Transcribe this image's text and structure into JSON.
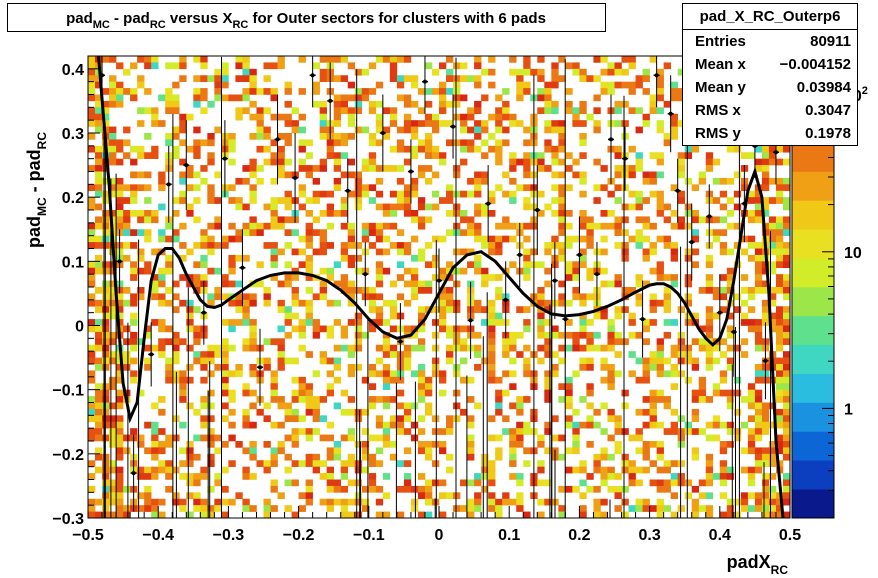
{
  "title": {
    "parts": [
      {
        "text": "pad",
        "sub": false
      },
      {
        "text": "MC",
        "sub": true
      },
      {
        "text": " - pad",
        "sub": false
      },
      {
        "text": "RC",
        "sub": true
      },
      {
        "text": " versus X",
        "sub": false
      },
      {
        "text": "RC",
        "sub": true
      },
      {
        "text": " for Outer sectors for clusters with 6 pads",
        "sub": false
      }
    ]
  },
  "stats": {
    "name": "pad_X_RC_Outerp6",
    "rows": [
      {
        "key": "Entries",
        "value": "80911"
      },
      {
        "key": "Mean x",
        "value": "−0.004152"
      },
      {
        "key": "Mean y",
        "value": "0.03984"
      },
      {
        "key": "RMS x",
        "value": "0.3047"
      },
      {
        "key": "RMS y",
        "value": "0.1978"
      }
    ]
  },
  "colors": {
    "fit_line": "#000000",
    "palette": [
      "#0a1a8c",
      "#0b3fbf",
      "#0d66d6",
      "#1a92e0",
      "#2bbde0",
      "#3fd6c2",
      "#5fe08c",
      "#9ce64a",
      "#d2ec2a",
      "#e8e020",
      "#f0c818",
      "#f0a014",
      "#ea7814",
      "#e65010",
      "#e03a10",
      "#d82812"
    ]
  },
  "chart_data": {
    "type": "heatmap",
    "title": "pad_MC - pad_RC versus X_RC for Outer sectors for clusters with 6 pads",
    "xlabel": "padX_RC",
    "ylabel": "pad_MC - pad_RC",
    "xlim": [
      -0.5,
      0.5
    ],
    "ylim": [
      -0.3,
      0.42
    ],
    "x_ticks": [
      -0.5,
      -0.4,
      -0.3,
      -0.2,
      -0.1,
      0,
      0.1,
      0.2,
      0.3,
      0.4,
      0.5
    ],
    "x_tick_labels": [
      "−0.5",
      "−0.4",
      "−0.3",
      "−0.2",
      "−0.1",
      "0",
      "0.1",
      "0.2",
      "0.3",
      "0.4",
      "0.5"
    ],
    "y_ticks": [
      -0.3,
      -0.2,
      -0.1,
      0,
      0.1,
      0.2,
      0.3,
      0.4
    ],
    "y_tick_labels": [
      "−0.3",
      "−0.2",
      "−0.1",
      "0",
      "0.1",
      "0.2",
      "0.3",
      "0.4"
    ],
    "z_scale": "log",
    "z_tick_labels": [
      {
        "label": "1",
        "z": 1
      },
      {
        "label": "10",
        "z": 10
      },
      {
        "label": "10",
        "z": 100,
        "exponent": "2"
      }
    ],
    "grid": false,
    "profile": {
      "x": [
        -0.48,
        -0.455,
        -0.435,
        -0.41,
        -0.385,
        -0.36,
        -0.335,
        -0.305,
        -0.28,
        -0.255,
        -0.23,
        -0.205,
        -0.18,
        -0.155,
        -0.13,
        -0.105,
        -0.08,
        -0.055,
        -0.04,
        -0.02,
        0.0,
        0.02,
        0.045,
        0.07,
        0.095,
        0.115,
        0.14,
        0.165,
        0.18,
        0.2,
        0.225,
        0.245,
        0.265,
        0.29,
        0.31,
        0.33,
        0.34,
        0.36,
        0.385,
        0.4,
        0.42,
        0.435,
        0.45,
        0.465,
        0.48
      ],
      "y": [
        0.39,
        0.1,
        -0.23,
        -0.045,
        0.22,
        0.25,
        0.02,
        0.26,
        0.09,
        -0.065,
        0.29,
        0.23,
        0.39,
        0.35,
        0.21,
        0.08,
        0.3,
        -0.025,
        0.24,
        0.38,
        0.07,
        0.31,
        0.008,
        0.19,
        0.04,
        0.11,
        0.18,
        0.07,
        0.01,
        0.11,
        0.08,
        0.29,
        0.26,
        0.01,
        0.39,
        0.33,
        0.21,
        0.13,
        0.17,
        0.02,
        -0.01,
        0.19,
        0.28,
        -0.055,
        0.27
      ],
      "err": [
        0.06,
        0.05,
        0.06,
        0.05,
        0.06,
        0.07,
        0.05,
        0.06,
        0.06,
        0.06,
        0.07,
        0.07,
        0.05,
        0.06,
        0.05,
        0.05,
        0.06,
        0.06,
        0.05,
        0.05,
        0.05,
        0.05,
        0.06,
        0.06,
        0.06,
        0.05,
        0.07,
        0.06,
        0.06,
        0.06,
        0.05,
        0.07,
        0.05,
        0.06,
        0.05,
        0.06,
        0.05,
        0.06,
        0.05,
        0.06,
        0.07,
        0.06,
        0.05,
        0.06,
        0.05
      ]
    },
    "fit_curve": {
      "x": [
        -0.485,
        -0.47,
        -0.46,
        -0.45,
        -0.44,
        -0.43,
        -0.42,
        -0.41,
        -0.4,
        -0.39,
        -0.38,
        -0.37,
        -0.36,
        -0.35,
        -0.34,
        -0.33,
        -0.32,
        -0.31,
        -0.3,
        -0.28,
        -0.26,
        -0.24,
        -0.22,
        -0.2,
        -0.18,
        -0.16,
        -0.14,
        -0.12,
        -0.1,
        -0.08,
        -0.06,
        -0.04,
        -0.02,
        0.0,
        0.02,
        0.04,
        0.06,
        0.08,
        0.1,
        0.12,
        0.14,
        0.16,
        0.18,
        0.2,
        0.22,
        0.24,
        0.26,
        0.28,
        0.3,
        0.31,
        0.32,
        0.33,
        0.34,
        0.35,
        0.36,
        0.37,
        0.38,
        0.39,
        0.4,
        0.41,
        0.42,
        0.43,
        0.44,
        0.45,
        0.46,
        0.47,
        0.48,
        0.49
      ],
      "y": [
        0.42,
        0.22,
        0.05,
        -0.09,
        -0.145,
        -0.12,
        -0.02,
        0.07,
        0.11,
        0.12,
        0.12,
        0.105,
        0.08,
        0.06,
        0.04,
        0.03,
        0.028,
        0.032,
        0.04,
        0.055,
        0.07,
        0.078,
        0.082,
        0.082,
        0.078,
        0.07,
        0.055,
        0.035,
        0.01,
        -0.01,
        -0.02,
        -0.015,
        0.01,
        0.05,
        0.09,
        0.11,
        0.115,
        0.1,
        0.075,
        0.05,
        0.03,
        0.018,
        0.015,
        0.017,
        0.022,
        0.03,
        0.04,
        0.052,
        0.063,
        0.065,
        0.065,
        0.06,
        0.05,
        0.035,
        0.015,
        -0.005,
        -0.02,
        -0.03,
        -0.02,
        0.01,
        0.07,
        0.14,
        0.21,
        0.24,
        0.2,
        0.05,
        -0.18,
        -0.3
      ]
    }
  }
}
